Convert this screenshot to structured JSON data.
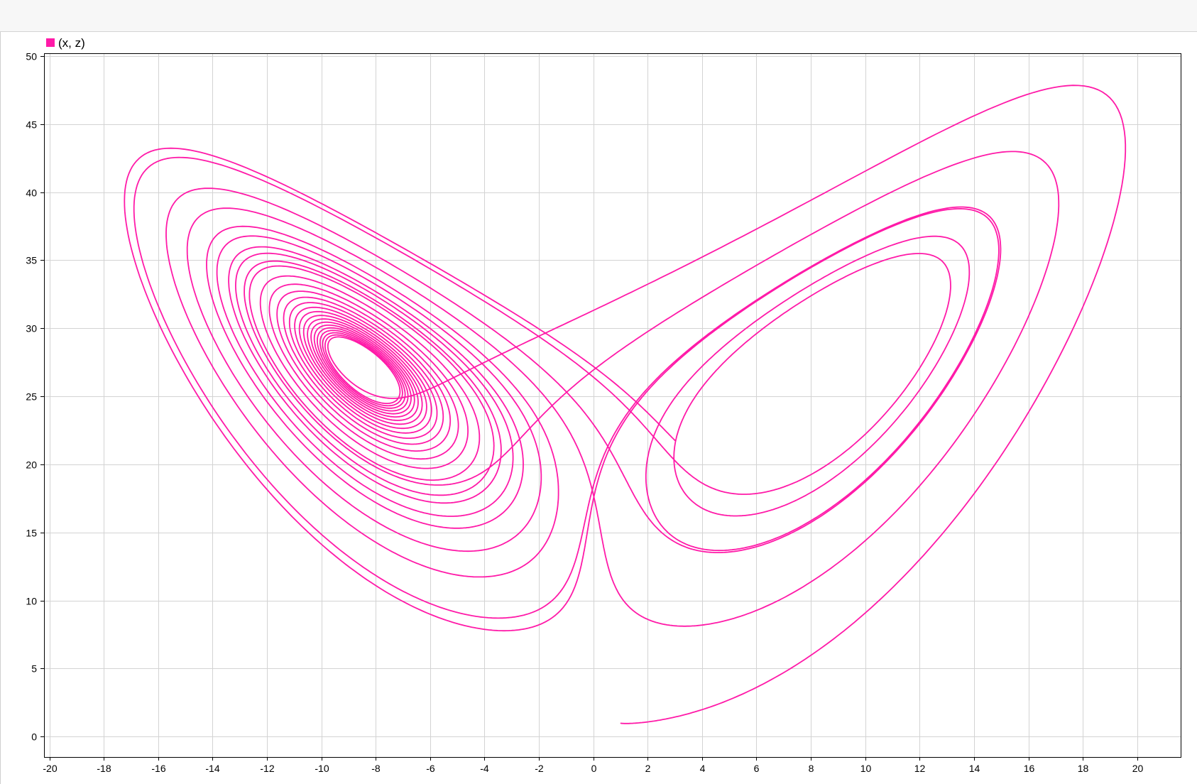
{
  "window": {
    "title": ""
  },
  "chart_data": {
    "type": "line",
    "title": "",
    "xlabel": "",
    "ylabel": "",
    "xlim": [
      -20.2,
      21.6
    ],
    "ylim": [
      -1.5,
      50.2
    ],
    "x_ticks": [
      -20,
      -18,
      -16,
      -14,
      -12,
      -10,
      -8,
      -6,
      -4,
      -2,
      0,
      2,
      4,
      6,
      8,
      10,
      12,
      14,
      16,
      18,
      20
    ],
    "y_ticks": [
      0,
      5,
      10,
      15,
      20,
      25,
      30,
      35,
      40,
      45,
      50
    ],
    "grid": true,
    "legend": "top-left",
    "series": [
      {
        "name": "(x, z)",
        "color": "#ff1aa8",
        "generator": {
          "system": "lorenz",
          "sigma": 10,
          "rho": 28,
          "beta": 2.6666667,
          "initial": [
            1,
            1,
            1
          ],
          "dt": 0.002,
          "steps": 11000
        }
      }
    ]
  }
}
